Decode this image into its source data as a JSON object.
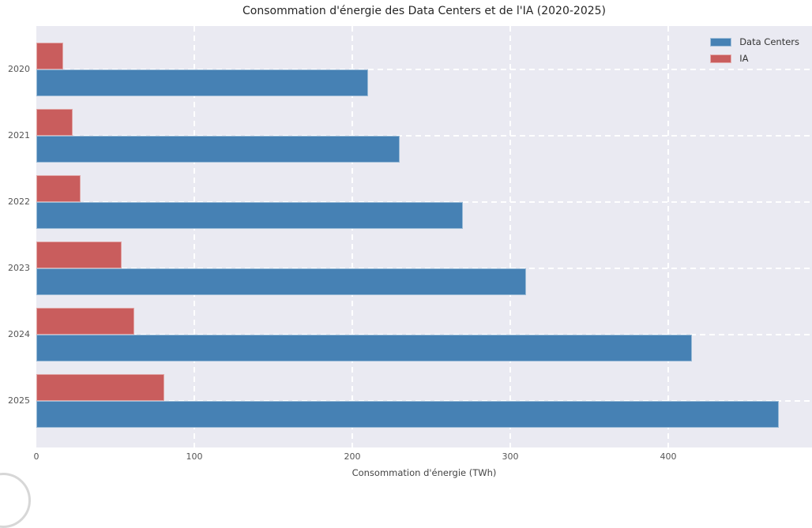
{
  "chart_data": {
    "type": "bar",
    "orientation": "horizontal",
    "title": "Consommation d'énergie des Data Centers et de l'IA (2020-2025)",
    "xlabel": "Consommation d'énergie (TWh)",
    "ylabel": "",
    "categories": [
      "2020",
      "2021",
      "2022",
      "2023",
      "2024",
      "2025"
    ],
    "series": [
      {
        "name": "Data Centers",
        "color": "#4681B4",
        "values": [
          210,
          230,
          270,
          310,
          415,
          470
        ]
      },
      {
        "name": "IA",
        "color": "#C95D5D",
        "values": [
          17,
          23,
          28,
          54,
          62,
          81
        ]
      }
    ],
    "xticks": [
      0,
      100,
      200,
      300,
      400
    ],
    "xlim": [
      0,
      491
    ],
    "grid": true,
    "grid_style": "dashed-white",
    "legend_position": "upper-right",
    "colors": {
      "plot_background": "#EAEAF2",
      "figure_background": "#FFFFFF",
      "grid": "#FFFFFF",
      "tick_text": "#555555",
      "title_text": "#262626"
    }
  }
}
